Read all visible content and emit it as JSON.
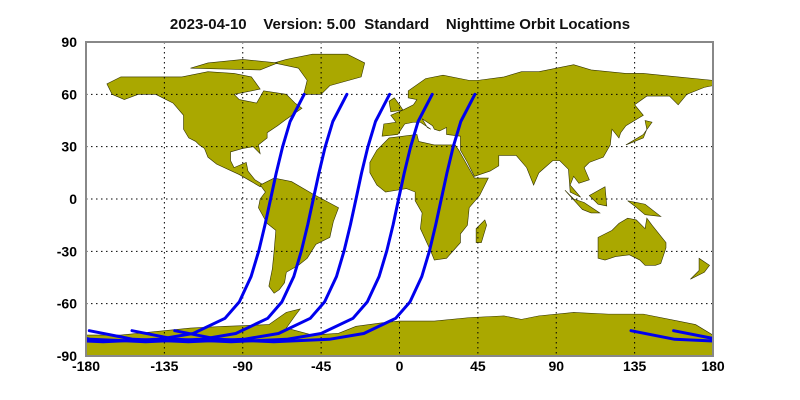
{
  "title": "2023-04-10    Version: 5.00  Standard    Nighttime Orbit Locations",
  "colors": {
    "land": "#aaa800",
    "coast": "#333300",
    "track": "#0000ee",
    "frame": "#888888",
    "grid": "#000000"
  },
  "chart_data": {
    "type": "line",
    "projection": "equirectangular",
    "title": "2023-04-10    Version: 5.00  Standard    Nighttime Orbit Locations",
    "xlim": [
      -180,
      180
    ],
    "ylim": [
      -90,
      90
    ],
    "x_ticks": [
      -180,
      -135,
      -90,
      -45,
      0,
      45,
      90,
      135,
      180
    ],
    "y_ticks": [
      90,
      60,
      30,
      0,
      -30,
      -60,
      -90
    ],
    "grid": true,
    "series": [
      {
        "points": [
          [
            -54.7,
            60
          ],
          [
            -62.8,
            44.4
          ],
          [
            -67.2,
            29.7
          ],
          [
            -70.8,
            14.8
          ],
          [
            -74,
            0
          ],
          [
            -77.2,
            -14.8
          ],
          [
            -80.8,
            -29.7
          ],
          [
            -85.2,
            -44.4
          ],
          [
            -92,
            -59
          ],
          [
            -100.2,
            -68.4
          ],
          [
            -118.5,
            -77.1
          ],
          [
            -138.3,
            -80.4
          ],
          [
            -170.2,
            -81.8
          ],
          [
            158,
            -80.4
          ],
          [
            132.9,
            -75.5
          ]
        ]
      },
      {
        "points": [
          [
            -30.2,
            60
          ],
          [
            -38.3,
            44.4
          ],
          [
            -42.7,
            29.7
          ],
          [
            -46.3,
            14.8
          ],
          [
            -49.5,
            0
          ],
          [
            -52.7,
            -14.8
          ],
          [
            -56.3,
            -29.7
          ],
          [
            -60.7,
            -44.4
          ],
          [
            -67.5,
            -59
          ],
          [
            -75.7,
            -68.4
          ],
          [
            -94,
            -77.1
          ],
          [
            -113.8,
            -80.4
          ],
          [
            -145.7,
            -81.8
          ],
          [
            -177.5,
            -80.4
          ],
          [
            157.4,
            -75.5
          ]
        ]
      },
      {
        "points": [
          [
            -5.7,
            60
          ],
          [
            -13.8,
            44.4
          ],
          [
            -18.2,
            29.7
          ],
          [
            -21.8,
            14.8
          ],
          [
            -25,
            0
          ],
          [
            -28.2,
            -14.8
          ],
          [
            -31.8,
            -29.7
          ],
          [
            -36.2,
            -44.4
          ],
          [
            -43,
            -59
          ],
          [
            -51.2,
            -68.4
          ],
          [
            -69.5,
            -77.1
          ],
          [
            -89.3,
            -80.4
          ],
          [
            -121.2,
            -81.8
          ],
          [
            -153,
            -80.4
          ],
          [
            -178.1,
            -75.5
          ]
        ]
      },
      {
        "points": [
          [
            18.8,
            60
          ],
          [
            10.7,
            44.4
          ],
          [
            6.3,
            29.7
          ],
          [
            2.7,
            14.8
          ],
          [
            -0.5,
            0
          ],
          [
            -3.7,
            -14.8
          ],
          [
            -7.3,
            -29.7
          ],
          [
            -11.7,
            -44.4
          ],
          [
            -18.5,
            -59
          ],
          [
            -26.7,
            -68.4
          ],
          [
            -45,
            -77.1
          ],
          [
            -64.8,
            -80.4
          ],
          [
            -96.7,
            -81.8
          ],
          [
            -128.5,
            -80.4
          ],
          [
            -153.6,
            -75.5
          ]
        ]
      },
      {
        "points": [
          [
            43.3,
            60
          ],
          [
            35.2,
            44.4
          ],
          [
            30.8,
            29.7
          ],
          [
            27.2,
            14.8
          ],
          [
            24,
            0
          ],
          [
            20.8,
            -14.8
          ],
          [
            17.2,
            -29.7
          ],
          [
            12.8,
            -44.4
          ],
          [
            6,
            -59
          ],
          [
            -2.2,
            -68.4
          ],
          [
            -20.5,
            -77.1
          ],
          [
            -40.3,
            -80.4
          ],
          [
            -72.2,
            -81.8
          ],
          [
            -104,
            -80.4
          ],
          [
            -129.1,
            -75.5
          ]
        ]
      }
    ]
  }
}
